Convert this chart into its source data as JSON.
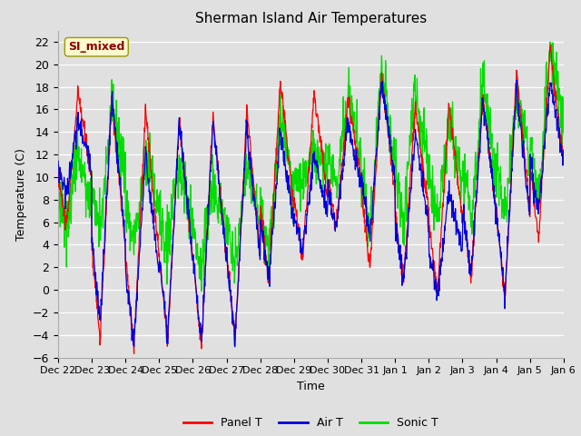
{
  "title": "Sherman Island Air Temperatures",
  "xlabel": "Time",
  "ylabel": "Temperature (C)",
  "annotation": "SI_mixed",
  "annotation_color": "#8B0000",
  "annotation_bg": "#FFFACD",
  "ylim": [
    -6,
    23
  ],
  "yticks": [
    -6,
    -4,
    -2,
    0,
    2,
    4,
    6,
    8,
    10,
    12,
    14,
    16,
    18,
    20,
    22
  ],
  "panel_color": "#FF0000",
  "air_color": "#0000DD",
  "sonic_color": "#00DD00",
  "legend_labels": [
    "Panel T",
    "Air T",
    "Sonic T"
  ],
  "bg_color": "#E0E0E0",
  "x_tick_labels": [
    "Dec 22",
    "Dec 23",
    "Dec 24",
    "Dec 25",
    "Dec 26",
    "Dec 27",
    "Dec 28",
    "Dec 29",
    "Dec 30",
    "Dec 31",
    "Jan 1",
    "Jan 2",
    "Jan 3",
    "Jan 4",
    "Jan 5",
    "Jan 6"
  ],
  "num_days": 15,
  "pts_per_day": 96
}
